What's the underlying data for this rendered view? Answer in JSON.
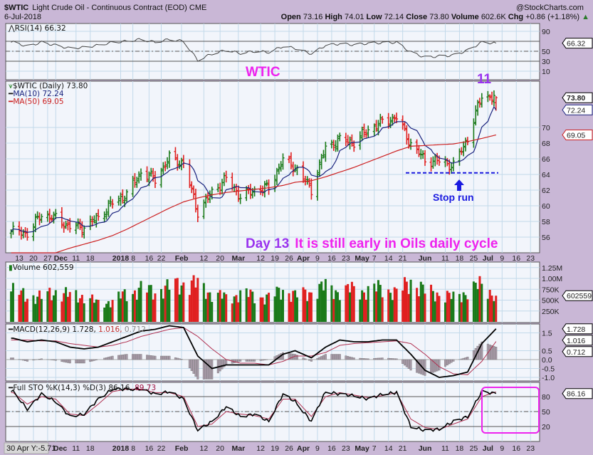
{
  "header": {
    "symbol": "$WTIC",
    "name": "Light Crude Oil - Continuous Contract (EOD)",
    "exchange": "CME",
    "date": "6-Jul-2018",
    "watermark": "@StockCharts.com",
    "open_label": "Open",
    "open": "73.16",
    "high_label": "High",
    "high": "74.01",
    "low_label": "Low",
    "low": "72.14",
    "close_label": "Close",
    "close": "73.80",
    "volume_label": "Volume",
    "volume": "602.6K",
    "chg_label": "Chg",
    "chg": "+0.86 (+1.18%)"
  },
  "panels": {
    "rsi": {
      "legend": "RSI(14) 66.32",
      "ticks": [
        "90",
        "50",
        "30",
        "10"
      ],
      "tick_values": [
        90,
        50,
        30,
        10
      ],
      "box": "66.32",
      "levels": [
        70,
        50,
        30
      ]
    },
    "price": {
      "legend": "$WTIC (Daily) 73.80",
      "ma10_legend": "MA(10) 72.24",
      "ma50_legend": "MA(50) 69.05",
      "ticks": [
        "70",
        "68",
        "66",
        "64",
        "62",
        "60",
        "58",
        "56"
      ],
      "tick_values": [
        70,
        68,
        66,
        64,
        62,
        60,
        58,
        56
      ],
      "box_close": "73.80",
      "box_ma10": "72.24",
      "box_ma50": "69.05"
    },
    "volume": {
      "legend": "Volume 602,559",
      "ticks": [
        "1.25M",
        "1.00M",
        "750K",
        "500K",
        "250K"
      ],
      "tick_values": [
        1250,
        1000,
        750,
        500,
        250
      ],
      "box": "602559"
    },
    "macd": {
      "legend_name": "MACD(12,26,9) 1.728,",
      "legend_signal": " 1.016,",
      "legend_hist": " 0.712",
      "ticks": [
        "1.5",
        "0.5",
        "0.0",
        "-0.5",
        "-1.0"
      ],
      "tick_values": [
        1.5,
        0.5,
        0,
        -0.5,
        -1.0
      ],
      "box_macd": "1.728",
      "box_signal": "1.016",
      "box_hist": "0.712"
    },
    "sto": {
      "legend_name": "Full STO %K(14,3) %D(3) 86.16,",
      "legend_d": " 89.73",
      "ticks": [
        "80",
        "50",
        "20"
      ],
      "tick_values": [
        80,
        50,
        20
      ],
      "box": "86.16"
    }
  },
  "annotations": {
    "wtic": "WTIC",
    "cycle_count": "11",
    "day": "Day 13",
    "comment": "It is still early in Oils daily cycle",
    "stop_run": "Stop run",
    "support_level": 64.2
  },
  "tooltip": "30 Apr Y:-5.71",
  "colors": {
    "up": "#1a7a1a",
    "down": "#e02020",
    "ma10": "#1a237e",
    "ma50": "#cc2020",
    "annot_magenta": "#ee22ee",
    "annot_purple": "#9933ee",
    "annot_blue": "#1a1ae0",
    "background": "#c9b7d6"
  },
  "date_ticks": [
    {
      "date": "2017-11-13",
      "label": "13"
    },
    {
      "date": "2017-11-20",
      "label": "20"
    },
    {
      "date": "2017-11-27",
      "label": "27"
    },
    {
      "date": "2017-12-01",
      "label": "Dec",
      "month": true
    },
    {
      "date": "2017-12-11",
      "label": "11"
    },
    {
      "date": "2017-12-18",
      "label": "18"
    },
    {
      "date": "2018-01-02",
      "label": "2018",
      "month": true
    },
    {
      "date": "2018-01-08",
      "label": "8"
    },
    {
      "date": "2018-01-16",
      "label": "16"
    },
    {
      "date": "2018-01-22",
      "label": "22"
    },
    {
      "date": "2018-02-01",
      "label": "Feb",
      "month": true
    },
    {
      "date": "2018-02-12",
      "label": "12"
    },
    {
      "date": "2018-02-20",
      "label": "20"
    },
    {
      "date": "2018-03-01",
      "label": "Mar",
      "month": true
    },
    {
      "date": "2018-03-12",
      "label": "12"
    },
    {
      "date": "2018-03-19",
      "label": "19"
    },
    {
      "date": "2018-03-26",
      "label": "26"
    },
    {
      "date": "2018-04-02",
      "label": "Apr",
      "month": true
    },
    {
      "date": "2018-04-09",
      "label": "9"
    },
    {
      "date": "2018-04-16",
      "label": "16"
    },
    {
      "date": "2018-04-23",
      "label": "23"
    },
    {
      "date": "2018-05-01",
      "label": "May",
      "month": true
    },
    {
      "date": "2018-05-07",
      "label": "7"
    },
    {
      "date": "2018-05-14",
      "label": "14"
    },
    {
      "date": "2018-05-21",
      "label": "21"
    },
    {
      "date": "2018-06-01",
      "label": "Jun",
      "month": true
    },
    {
      "date": "2018-06-11",
      "label": "11"
    },
    {
      "date": "2018-06-18",
      "label": "18"
    },
    {
      "date": "2018-06-25",
      "label": "25"
    },
    {
      "date": "2018-07-02",
      "label": "Jul",
      "month": true
    },
    {
      "date": "2018-07-09",
      "label": "9"
    },
    {
      "date": "2018-07-16",
      "label": "16"
    },
    {
      "date": "2018-07-23",
      "label": "23"
    }
  ],
  "chart_data": {
    "type": "ohlc-bar",
    "title": "$WTIC Light Crude Oil - Continuous Contract (EOD)",
    "frequency": "weekly samples of daily chart",
    "dates": [
      "2017-11-10",
      "2017-11-17",
      "2017-11-24",
      "2017-12-01",
      "2017-12-08",
      "2017-12-15",
      "2017-12-22",
      "2017-12-29",
      "2018-01-05",
      "2018-01-12",
      "2018-01-19",
      "2018-01-26",
      "2018-02-02",
      "2018-02-09",
      "2018-02-16",
      "2018-02-23",
      "2018-03-02",
      "2018-03-09",
      "2018-03-16",
      "2018-03-23",
      "2018-03-29",
      "2018-04-06",
      "2018-04-13",
      "2018-04-20",
      "2018-04-27",
      "2018-05-04",
      "2018-05-11",
      "2018-05-18",
      "2018-05-25",
      "2018-06-01",
      "2018-06-08",
      "2018-06-15",
      "2018-06-22",
      "2018-06-29",
      "2018-07-06"
    ],
    "close": [
      56.7,
      56.5,
      58.9,
      58.4,
      57.3,
      57.3,
      58.5,
      60.4,
      61.4,
      64.3,
      63.4,
      66.1,
      65.4,
      59.2,
      61.7,
      63.5,
      61.2,
      62.0,
      62.3,
      65.9,
      64.9,
      62.1,
      67.4,
      68.4,
      68.1,
      69.7,
      70.7,
      71.3,
      67.9,
      65.8,
      65.7,
      65.1,
      68.6,
      74.1,
      73.8
    ],
    "ma50": [
      52.0,
      52.6,
      53.3,
      54.0,
      54.6,
      55.1,
      55.6,
      56.2,
      57.0,
      57.9,
      58.8,
      59.7,
      60.5,
      61.0,
      61.4,
      61.7,
      61.9,
      62.1,
      62.3,
      62.6,
      63.0,
      63.2,
      63.7,
      64.3,
      64.9,
      65.6,
      66.3,
      67.0,
      67.6,
      67.7,
      67.8,
      67.9,
      68.2,
      68.6,
      69.05
    ],
    "volume_k": [
      700,
      600,
      560,
      700,
      600,
      600,
      420,
      480,
      650,
      750,
      700,
      800,
      900,
      850,
      650,
      550,
      650,
      600,
      550,
      750,
      600,
      700,
      800,
      700,
      750,
      700,
      800,
      650,
      950,
      700,
      650,
      550,
      700,
      850,
      602.559
    ],
    "rsi": [
      68,
      60,
      68,
      62,
      56,
      58,
      62,
      68,
      70,
      74,
      68,
      74,
      70,
      32,
      45,
      52,
      46,
      50,
      48,
      60,
      56,
      45,
      62,
      65,
      63,
      66,
      67,
      68,
      48,
      38,
      40,
      42,
      52,
      68,
      66.32
    ],
    "macd": [
      1.2,
      1.0,
      1.1,
      1.0,
      0.7,
      0.6,
      0.7,
      1.0,
      1.3,
      1.6,
      1.7,
      1.9,
      1.8,
      0.2,
      -0.5,
      -0.3,
      -0.3,
      -0.3,
      -0.3,
      0.3,
      0.5,
      0.1,
      0.7,
      1.1,
      1.0,
      1.0,
      1.1,
      1.1,
      0.3,
      -0.6,
      -1.0,
      -0.9,
      -0.7,
      0.9,
      1.728
    ],
    "macd_signal": [
      1.1,
      1.1,
      1.05,
      1.05,
      0.9,
      0.8,
      0.7,
      0.8,
      1.0,
      1.3,
      1.5,
      1.7,
      1.8,
      1.3,
      0.6,
      0.0,
      -0.2,
      -0.2,
      -0.3,
      -0.1,
      0.2,
      0.2,
      0.4,
      0.8,
      0.9,
      0.95,
      1.0,
      1.05,
      0.9,
      0.3,
      -0.4,
      -0.8,
      -0.85,
      -0.1,
      1.016
    ],
    "sto_k": [
      90,
      55,
      85,
      70,
      40,
      45,
      75,
      95,
      95,
      95,
      85,
      90,
      75,
      12,
      30,
      60,
      40,
      45,
      30,
      85,
      70,
      30,
      90,
      85,
      82,
      75,
      85,
      88,
      20,
      12,
      15,
      30,
      40,
      90,
      86.16
    ],
    "sto_d": [
      88,
      65,
      80,
      75,
      45,
      42,
      65,
      90,
      95,
      95,
      88,
      88,
      80,
      20,
      25,
      50,
      45,
      42,
      35,
      75,
      75,
      40,
      80,
      88,
      83,
      78,
      82,
      88,
      35,
      18,
      14,
      25,
      35,
      80,
      89.73
    ],
    "last": {
      "open": 73.16,
      "high": 74.01,
      "low": 72.14,
      "close": 73.8,
      "ma10": 72.24,
      "ma50": 69.05,
      "volume": 602559
    },
    "y_range_price": [
      54,
      76
    ],
    "grid": true
  }
}
